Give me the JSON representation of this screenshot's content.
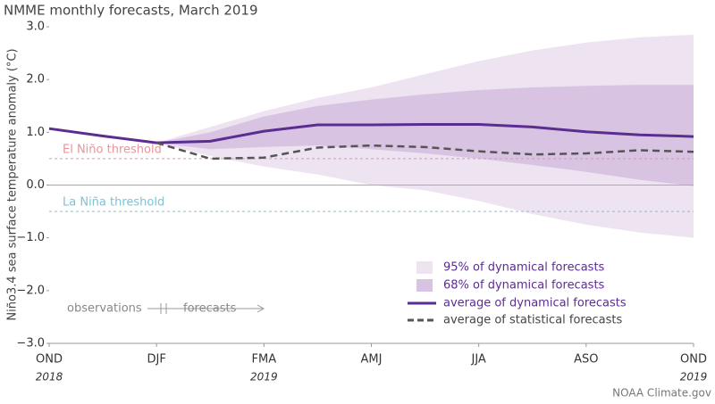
{
  "chart_data": {
    "type": "line",
    "title": "NMME monthly forecasts, March 2019",
    "y_label": "Niño3.4 sea surface temperature anomaly (°C)",
    "credit": "NOAA Climate.gov",
    "categories": [
      "OND",
      null,
      "DJF",
      null,
      "FMA",
      null,
      "AMJ",
      null,
      "JJA",
      null,
      "ASO",
      null,
      "OND"
    ],
    "category_years": [
      "2018",
      null,
      null,
      null,
      "2019",
      null,
      null,
      null,
      null,
      null,
      null,
      null,
      "2019"
    ],
    "ylim": [
      -3,
      3
    ],
    "yticks": [
      {
        "value": -3,
        "label": "−3.0"
      },
      {
        "value": -2,
        "label": "−2.0"
      },
      {
        "value": -1,
        "label": "−1.0"
      },
      {
        "value": 0,
        "label": "0.0"
      },
      {
        "value": 1,
        "label": "1.0"
      },
      {
        "value": 2,
        "label": "2.0"
      },
      {
        "value": 3,
        "label": "3.0"
      }
    ],
    "bands": [
      {
        "name": "95% of dynamical forecasts",
        "color": "#ede3f1",
        "upper": [
          null,
          null,
          0.8,
          1.1,
          1.4,
          1.65,
          1.85,
          2.1,
          2.35,
          2.55,
          2.7,
          2.8,
          2.85
        ],
        "lower": [
          null,
          null,
          0.8,
          0.55,
          0.35,
          0.2,
          0.0,
          -0.1,
          -0.3,
          -0.55,
          -0.75,
          -0.9,
          -1.0
        ]
      },
      {
        "name": "68% of dynamical forecasts",
        "color": "#d8c4e2",
        "upper": [
          null,
          null,
          0.8,
          1.0,
          1.3,
          1.5,
          1.62,
          1.72,
          1.8,
          1.85,
          1.88,
          1.9,
          1.9
        ],
        "lower": [
          null,
          null,
          0.8,
          0.68,
          0.72,
          0.75,
          0.68,
          0.6,
          0.5,
          0.38,
          0.25,
          0.1,
          -0.02
        ]
      }
    ],
    "series": [
      {
        "name": "average of dynamical forecasts",
        "color": "#5b2d91",
        "dashed": false,
        "values": [
          1.07,
          0.93,
          0.8,
          0.83,
          1.02,
          1.14,
          1.14,
          1.15,
          1.15,
          1.1,
          1.01,
          0.95,
          0.92
        ]
      },
      {
        "name": "average of statistical forecasts",
        "color": "#555555",
        "dashed": true,
        "values": [
          null,
          null,
          0.8,
          0.5,
          0.52,
          0.71,
          0.75,
          0.72,
          0.64,
          0.58,
          0.6,
          0.66,
          0.63
        ]
      }
    ],
    "thresholds": [
      {
        "label": "El Niño threshold",
        "value": 0.5,
        "color": "#e8959b"
      },
      {
        "label": "La Niña threshold",
        "value": -0.5,
        "color": "#7cc3d6"
      }
    ],
    "zero_line": 0,
    "annotation": {
      "left": "observations",
      "right": "forecasts"
    }
  }
}
